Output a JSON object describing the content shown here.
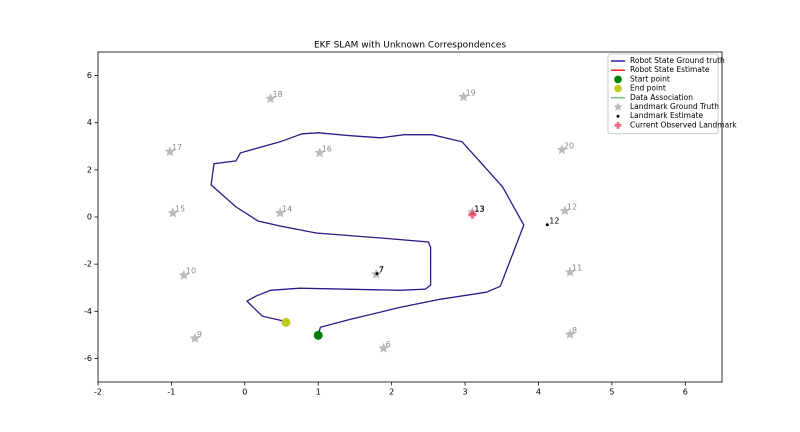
{
  "chart_data": {
    "type": "line",
    "title": "EKF SLAM with Unknown Correspondences",
    "xlim": [
      -2,
      6.5
    ],
    "ylim": [
      -7,
      7
    ],
    "xticks": [
      -2,
      -1,
      0,
      1,
      2,
      3,
      4,
      5,
      6
    ],
    "yticks": [
      -6,
      -4,
      -2,
      0,
      2,
      4,
      6
    ],
    "legend": "upper right",
    "series": [
      {
        "name": "Robot State Ground truth",
        "color": "#00008b",
        "marker": "line",
        "x": [
          1.0,
          1.03,
          1.44,
          2.12,
          2.66,
          3.29,
          3.48,
          3.8,
          3.51,
          2.96,
          2.55,
          2.17,
          1.85,
          1.44,
          1.0,
          0.78,
          0.48,
          -0.06,
          -0.12,
          -0.42,
          -0.46,
          -0.12,
          0.18,
          0.48,
          0.97,
          1.85,
          2.5,
          2.53,
          2.53,
          2.46,
          2.12,
          0.75,
          0.35,
          0.15,
          0.03,
          0.14,
          0.24,
          0.55
        ],
        "y": [
          -5.02,
          -4.68,
          -4.34,
          -3.83,
          -3.49,
          -3.19,
          -2.94,
          -0.34,
          1.28,
          3.19,
          3.49,
          3.49,
          3.36,
          3.45,
          3.57,
          3.53,
          3.19,
          2.72,
          2.38,
          2.26,
          1.36,
          0.43,
          -0.17,
          -0.38,
          -0.68,
          -0.89,
          -1.06,
          -1.28,
          -2.89,
          -3.06,
          -3.11,
          -3.02,
          -3.11,
          -3.36,
          -3.57,
          -3.91,
          -4.21,
          -4.43
        ]
      },
      {
        "name": "Robot State Estimate",
        "color": "#ff0000",
        "marker": "line",
        "x": [
          1.0,
          1.03,
          1.44,
          2.12,
          2.66,
          3.29,
          3.48,
          3.8,
          3.51,
          2.96,
          2.55,
          2.17,
          1.85,
          1.44,
          1.0,
          0.78,
          0.48,
          -0.06,
          -0.12,
          -0.42,
          -0.46,
          -0.12,
          0.18,
          0.48,
          0.97,
          1.85,
          2.5,
          2.53,
          2.53,
          2.46,
          2.12,
          0.75,
          0.35,
          0.15,
          0.03,
          0.14,
          0.24,
          0.55
        ],
        "y": [
          -5.02,
          -4.68,
          -4.34,
          -3.83,
          -3.49,
          -3.19,
          -2.94,
          -0.34,
          1.28,
          3.19,
          3.49,
          3.49,
          3.36,
          3.45,
          3.57,
          3.53,
          3.19,
          2.72,
          2.38,
          2.26,
          1.36,
          0.43,
          -0.17,
          -0.38,
          -0.68,
          -0.89,
          -1.06,
          -1.28,
          -2.89,
          -3.06,
          -3.11,
          -3.02,
          -3.11,
          -3.36,
          -3.57,
          -3.91,
          -4.21,
          -4.43
        ]
      },
      {
        "name": "Start point",
        "color": "#008000",
        "marker": "circle",
        "x": [
          1.0
        ],
        "y": [
          -5.02
        ]
      },
      {
        "name": "End point",
        "color": "#bfcc1f",
        "marker": "circle",
        "x": [
          0.56
        ],
        "y": [
          -4.47
        ]
      },
      {
        "name": "Data Association",
        "color": "#5fbf5f",
        "marker": "line",
        "x": [],
        "y": []
      },
      {
        "name": "Landmark Ground Truth",
        "color": "#aaaaaa",
        "marker": "star",
        "x": [
          0.35,
          2.98,
          -1.02,
          1.02,
          4.32,
          -0.98,
          0.48,
          3.1,
          4.36,
          1.79,
          -0.83,
          4.43,
          -0.68,
          1.89,
          4.43
        ],
        "y": [
          5.02,
          5.1,
          2.77,
          2.72,
          2.85,
          0.17,
          0.17,
          0.2,
          0.26,
          -2.43,
          -2.47,
          -2.34,
          -5.15,
          -5.57,
          -4.98
        ],
        "labels": [
          "18",
          "19",
          "17",
          "16",
          "20",
          "15",
          "14",
          "13",
          "12",
          "7",
          "10",
          "11",
          "9",
          "6",
          "8"
        ]
      },
      {
        "name": "Landmark Estimate",
        "color": "#000000",
        "marker": "dot",
        "x": [
          3.1,
          4.12,
          1.8
        ],
        "y": [
          0.15,
          -0.33,
          -2.4
        ],
        "labels": [
          "13",
          "12",
          "7"
        ]
      },
      {
        "name": "Current Observed Landmark",
        "color": "#f0506e",
        "marker": "plus",
        "x": [
          3.1
        ],
        "y": [
          0.1
        ]
      }
    ]
  }
}
